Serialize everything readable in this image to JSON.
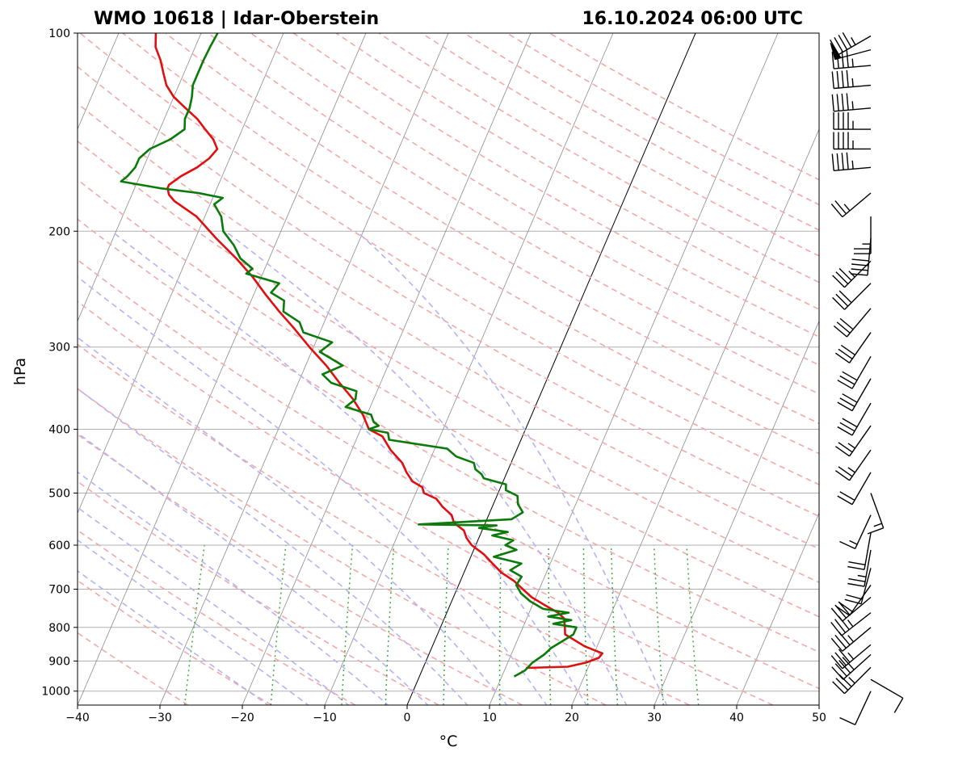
{
  "chart_data": {
    "type": "line",
    "subtype": "skew-t log-p sounding",
    "title_left": "WMO 10618 | Idar-Oberstein",
    "title_right": "16.10.2024 06:00 UTC",
    "xlabel": "°C",
    "ylabel": "hPa",
    "xlim": [
      -40,
      50
    ],
    "ylim": [
      1050,
      100
    ],
    "x_ticks": [
      -40,
      -30,
      -20,
      -10,
      0,
      10,
      20,
      30,
      40,
      50
    ],
    "x_tick_labels": [
      "−40",
      "−30",
      "−20",
      "−10",
      "0",
      "10",
      "20",
      "30",
      "40",
      "50"
    ],
    "y_ticks": [
      1000,
      900,
      800,
      700,
      600,
      500,
      400,
      300,
      200,
      100
    ],
    "y_tick_labels": [
      "1000",
      "900",
      "800",
      "700",
      "600",
      "500",
      "400",
      "300",
      "200",
      "100"
    ],
    "series": [
      {
        "name": "temperature",
        "color": "#e01010",
        "pressure": [
          922,
          918,
          905,
          890,
          876,
          855,
          820,
          795,
          775,
          760,
          740,
          720,
          700,
          680,
          660,
          640,
          620,
          600,
          585,
          570,
          555,
          540,
          525,
          510,
          500,
          490,
          480,
          465,
          450,
          430,
          410,
          400,
          380,
          360,
          340,
          320,
          300,
          280,
          265,
          250,
          235,
          220,
          205,
          190,
          180,
          176,
          172,
          170,
          165,
          160,
          155,
          150,
          145,
          140,
          135,
          130,
          125,
          120,
          115,
          110,
          105,
          100
        ],
        "temp": [
          12.5,
          17.5,
          19.5,
          20.8,
          21.0,
          18.5,
          15.5,
          15.0,
          14.5,
          13.5,
          11.5,
          9.5,
          8.0,
          6.5,
          4.5,
          3.0,
          1.5,
          -0.5,
          -1.5,
          -2.2,
          -3.8,
          -4.5,
          -6.0,
          -7.2,
          -9.0,
          -9.5,
          -11.0,
          -12.2,
          -13.2,
          -15.3,
          -17.0,
          -19.0,
          -20.5,
          -22.5,
          -25.0,
          -27.5,
          -30.5,
          -33.5,
          -36.0,
          -38.5,
          -41.0,
          -44.0,
          -47.5,
          -51.0,
          -54.5,
          -55.5,
          -56.0,
          -56.0,
          -55.0,
          -53.5,
          -52.5,
          -52.0,
          -53.0,
          -54.5,
          -56.0,
          -58.0,
          -60.0,
          -61.5,
          -62.5,
          -63.5,
          -64.8,
          -65.5
        ]
      },
      {
        "name": "dewpoint",
        "color": "#0a7a0a",
        "pressure": [
          950,
          930,
          905,
          880,
          860,
          840,
          820,
          800,
          790,
          780,
          770,
          760,
          750,
          730,
          710,
          690,
          670,
          655,
          640,
          625,
          610,
          600,
          590,
          580,
          573,
          565,
          560,
          558,
          548,
          535,
          520,
          505,
          495,
          485,
          475,
          468,
          460,
          450,
          440,
          428,
          415,
          405,
          400,
          395,
          390,
          380,
          370,
          360,
          350,
          340,
          330,
          320,
          305,
          295,
          285,
          275,
          265,
          255,
          248,
          240,
          232,
          228,
          220,
          210,
          200,
          190,
          182,
          178,
          175,
          172,
          168,
          165,
          160,
          155,
          150,
          145,
          140,
          135,
          130,
          125,
          120,
          115,
          110,
          105,
          100
        ],
        "dewp": [
          11.5,
          12.5,
          13.0,
          14.0,
          14.5,
          15.5,
          16.5,
          16.5,
          13.5,
          15.5,
          12.5,
          14.8,
          11.5,
          9.5,
          8.0,
          7.0,
          7.2,
          5.5,
          6.5,
          2.8,
          5.2,
          3.6,
          4.3,
          1.5,
          3.2,
          -0.5,
          1.5,
          -8.0,
          3.0,
          4.0,
          3.0,
          2.5,
          0.8,
          0.5,
          -2.5,
          -3.0,
          -4.0,
          -4.5,
          -7.0,
          -8.5,
          -16.0,
          -16.5,
          -19.0,
          -18.0,
          -18.8,
          -19.5,
          -23.0,
          -22.2,
          -22.5,
          -26.0,
          -27.5,
          -25.5,
          -29.0,
          -28.0,
          -32.0,
          -33.0,
          -35.5,
          -36.0,
          -38.0,
          -37.5,
          -42.0,
          -41.5,
          -43.5,
          -45.0,
          -47.0,
          -48.0,
          -49.5,
          -48.8,
          -52.0,
          -57.0,
          -62.0,
          -61.5,
          -61.0,
          -61.0,
          -60.2,
          -58.2,
          -57.0,
          -57.5,
          -57.5,
          -57.8,
          -58.3,
          -58.3,
          -58.3,
          -58.2,
          -58.0
        ]
      }
    ],
    "wind_barbs": [
      {
        "pressure": 1000,
        "direction": 205,
        "speed": 10
      },
      {
        "pressure": 960,
        "direction": 120,
        "speed": 10
      },
      {
        "pressure": 920,
        "direction": 225,
        "speed": 35
      },
      {
        "pressure": 880,
        "direction": 228,
        "speed": 40
      },
      {
        "pressure": 850,
        "direction": 230,
        "speed": 35
      },
      {
        "pressure": 800,
        "direction": 230,
        "speed": 35
      },
      {
        "pressure": 760,
        "direction": 232,
        "speed": 35
      },
      {
        "pressure": 720,
        "direction": 230,
        "speed": 30
      },
      {
        "pressure": 690,
        "direction": 215,
        "speed": 20
      },
      {
        "pressure": 650,
        "direction": 195,
        "speed": 20
      },
      {
        "pressure": 610,
        "direction": 190,
        "speed": 25
      },
      {
        "pressure": 575,
        "direction": 190,
        "speed": 20
      },
      {
        "pressure": 540,
        "direction": 205,
        "speed": 15
      },
      {
        "pressure": 500,
        "direction": 160,
        "speed": 15
      },
      {
        "pressure": 465,
        "direction": 210,
        "speed": 20
      },
      {
        "pressure": 430,
        "direction": 215,
        "speed": 25
      },
      {
        "pressure": 395,
        "direction": 215,
        "speed": 25
      },
      {
        "pressure": 365,
        "direction": 210,
        "speed": 30
      },
      {
        "pressure": 335,
        "direction": 210,
        "speed": 30
      },
      {
        "pressure": 310,
        "direction": 210,
        "speed": 30
      },
      {
        "pressure": 285,
        "direction": 215,
        "speed": 30
      },
      {
        "pressure": 262,
        "direction": 220,
        "speed": 30
      },
      {
        "pressure": 240,
        "direction": 225,
        "speed": 30
      },
      {
        "pressure": 222,
        "direction": 225,
        "speed": 35
      },
      {
        "pressure": 205,
        "direction": 185,
        "speed": 40
      },
      {
        "pressure": 190,
        "direction": 180,
        "speed": 25
      },
      {
        "pressure": 175,
        "direction": 230,
        "speed": 25
      },
      {
        "pressure": 160,
        "direction": 265,
        "speed": 45
      },
      {
        "pressure": 150,
        "direction": 270,
        "speed": 45
      },
      {
        "pressure": 140,
        "direction": 270,
        "speed": 45
      },
      {
        "pressure": 130,
        "direction": 265,
        "speed": 45
      },
      {
        "pressure": 120,
        "direction": 265,
        "speed": 45
      },
      {
        "pressure": 112,
        "direction": 265,
        "speed": 45
      },
      {
        "pressure": 106,
        "direction": 255,
        "speed": 50
      },
      {
        "pressure": 101,
        "direction": 240,
        "speed": 45
      }
    ]
  }
}
